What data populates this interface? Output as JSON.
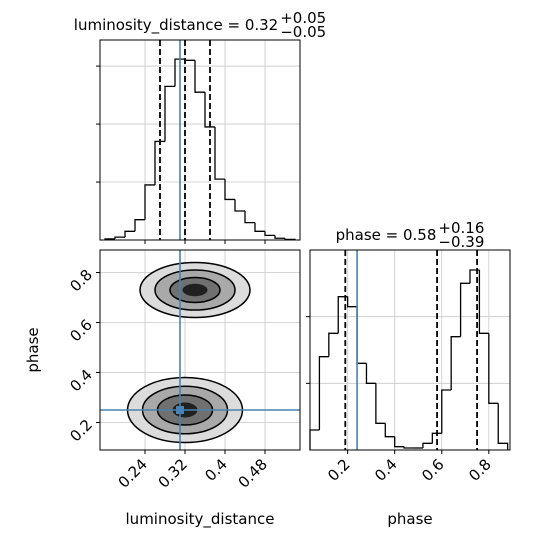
{
  "chart_data": [
    {
      "type": "histogram",
      "title": "luminosity_distance = 0.32",
      "title_upper": "+0.05",
      "title_lower": "−0.05",
      "bins": [
        0.16,
        0.18,
        0.2,
        0.22,
        0.24,
        0.26,
        0.28,
        0.3,
        0.32,
        0.34,
        0.36,
        0.38,
        0.4,
        0.42,
        0.44,
        0.46,
        0.48,
        0.5,
        0.52,
        0.54
      ],
      "counts": [
        20,
        50,
        150,
        350,
        950,
        1700,
        2650,
        3120,
        3100,
        2550,
        1950,
        1050,
        700,
        500,
        300,
        150,
        80,
        30,
        10
      ],
      "xlim": [
        0.15,
        0.55
      ],
      "xticks": [
        0.24,
        0.32,
        0.4,
        0.48
      ],
      "xtick_labels": false,
      "ylim": [
        0,
        3450
      ],
      "yticks": [
        1000,
        2000,
        3000
      ],
      "quantiles": [
        0.27,
        0.32,
        0.37
      ],
      "truth": 0.31,
      "color": "#000000",
      "truth_color": "#4682b4",
      "grid": true
    },
    {
      "type": "contour",
      "xlabel": "luminosity_distance",
      "ylabel": "phase",
      "xlim": [
        0.15,
        0.55
      ],
      "xticks": [
        0.24,
        0.32,
        0.4,
        0.48
      ],
      "ylim": [
        0.09,
        0.89
      ],
      "yticks": [
        0.2,
        0.4,
        0.6,
        0.8
      ],
      "truth_x": 0.31,
      "truth_y": 0.25,
      "modes": [
        {
          "x": 0.34,
          "y": 0.73,
          "rx": [
            0.11,
            0.08,
            0.05,
            0.025
          ],
          "ry": [
            0.11,
            0.08,
            0.05,
            0.025
          ]
        },
        {
          "x": 0.32,
          "y": 0.25,
          "rx": [
            0.115,
            0.085,
            0.055,
            0.025
          ],
          "ry": [
            0.13,
            0.095,
            0.06,
            0.03
          ]
        }
      ],
      "level_fills": [
        "#dcdcdc",
        "#a9a9a9",
        "#707070",
        "#202020"
      ],
      "truth_color": "#4682b4",
      "grid": true
    },
    {
      "type": "histogram",
      "title": "phase = 0.58",
      "title_upper": "+0.16",
      "title_lower": "−0.39",
      "xlabel": "phase",
      "bins": [
        0.04,
        0.08,
        0.12,
        0.16,
        0.2,
        0.24,
        0.28,
        0.32,
        0.36,
        0.4,
        0.44,
        0.48,
        0.52,
        0.56,
        0.6,
        0.64,
        0.68,
        0.72,
        0.76,
        0.8,
        0.84,
        0.88
      ],
      "counts": [
        300,
        1400,
        1750,
        2300,
        2150,
        1300,
        1000,
        400,
        200,
        50,
        30,
        30,
        100,
        250,
        900,
        1700,
        2500,
        2700,
        1750,
        700,
        100
      ],
      "xlim": [
        0.04,
        0.89
      ],
      "xticks": [
        0.2,
        0.4,
        0.6,
        0.8
      ],
      "xtick_labels": true,
      "ylim": [
        0,
        3000
      ],
      "yticks": [
        1000,
        2000
      ],
      "quantiles": [
        0.19,
        0.58,
        0.75
      ],
      "truth": 0.24,
      "color": "#000000",
      "truth_color": "#4682b4",
      "grid": true
    }
  ]
}
